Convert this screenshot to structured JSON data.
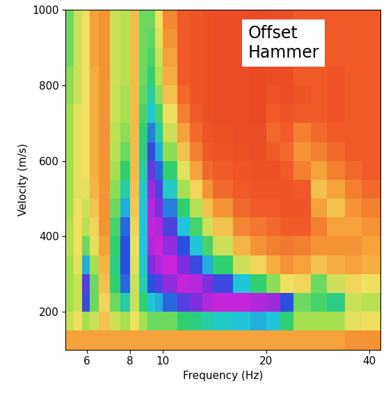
{
  "chart_data": {
    "type": "heatmap",
    "x_label": "Frequency (Hz)",
    "y_label": "Velocity (m/s)",
    "annotation": "Offset\nHammer",
    "log": "x",
    "xlim": [
      5.2,
      43
    ],
    "ylim": [
      100,
      1000
    ],
    "xticks": [
      6,
      8,
      10,
      20,
      40
    ],
    "yticks": [
      200,
      400,
      600,
      800,
      1000
    ],
    "x_edges": [
      5.2,
      5.5,
      5.8,
      6.1,
      6.5,
      7.0,
      7.5,
      8.0,
      8.5,
      9.0,
      9.5,
      10,
      11,
      12,
      13,
      14,
      16,
      18,
      20,
      22,
      24,
      27,
      30,
      34,
      38,
      43
    ],
    "y_edges": [
      100,
      150,
      200,
      250,
      300,
      350,
      400,
      450,
      500,
      550,
      600,
      650,
      700,
      750,
      800,
      850,
      900,
      950,
      1000
    ],
    "cell_range": [
      0,
      1
    ],
    "cells_by_frequency": [
      [
        0.3,
        0.45,
        0.5,
        0.5,
        0.5,
        0.48,
        0.48,
        0.5,
        0.5,
        0.5,
        0.5,
        0.5,
        0.5,
        0.52,
        0.52,
        0.55,
        0.55,
        0.55
      ],
      [
        0.3,
        0.4,
        0.45,
        0.45,
        0.42,
        0.4,
        0.4,
        0.4,
        0.42,
        0.42,
        0.42,
        0.42,
        0.42,
        0.45,
        0.45,
        0.45,
        0.45,
        0.45
      ],
      [
        0.3,
        0.5,
        0.82,
        0.85,
        0.72,
        0.55,
        0.48,
        0.45,
        0.42,
        0.4,
        0.4,
        0.4,
        0.4,
        0.4,
        0.4,
        0.4,
        0.4,
        0.4
      ],
      [
        0.3,
        0.45,
        0.55,
        0.55,
        0.5,
        0.42,
        0.38,
        0.35,
        0.33,
        0.32,
        0.32,
        0.32,
        0.32,
        0.32,
        0.32,
        0.3,
        0.3,
        0.3
      ],
      [
        0.3,
        0.35,
        0.38,
        0.35,
        0.33,
        0.3,
        0.28,
        0.28,
        0.28,
        0.28,
        0.28,
        0.28,
        0.28,
        0.28,
        0.28,
        0.28,
        0.28,
        0.28
      ],
      [
        0.3,
        0.45,
        0.55,
        0.6,
        0.62,
        0.6,
        0.58,
        0.55,
        0.52,
        0.5,
        0.48,
        0.47,
        0.46,
        0.46,
        0.45,
        0.45,
        0.45,
        0.45
      ],
      [
        0.3,
        0.5,
        0.65,
        0.78,
        0.8,
        0.8,
        0.78,
        0.72,
        0.65,
        0.6,
        0.55,
        0.52,
        0.5,
        0.5,
        0.48,
        0.48,
        0.48,
        0.48
      ],
      [
        0.3,
        0.4,
        0.45,
        0.45,
        0.42,
        0.4,
        0.38,
        0.36,
        0.35,
        0.34,
        0.34,
        0.34,
        0.34,
        0.34,
        0.34,
        0.34,
        0.34,
        0.34
      ],
      [
        0.3,
        0.5,
        0.6,
        0.65,
        0.68,
        0.7,
        0.7,
        0.7,
        0.68,
        0.65,
        0.62,
        0.6,
        0.58,
        0.56,
        0.55,
        0.55,
        0.55,
        0.55
      ],
      [
        0.3,
        0.55,
        0.7,
        0.8,
        0.9,
        0.95,
        0.97,
        0.96,
        0.93,
        0.88,
        0.82,
        0.76,
        0.7,
        0.65,
        0.6,
        0.58,
        0.56,
        0.55
      ],
      [
        0.3,
        0.55,
        0.72,
        0.85,
        0.95,
        0.98,
        0.95,
        0.9,
        0.84,
        0.78,
        0.72,
        0.65,
        0.58,
        0.52,
        0.48,
        0.45,
        0.42,
        0.4
      ],
      [
        0.3,
        0.55,
        0.78,
        0.92,
        0.98,
        0.92,
        0.84,
        0.76,
        0.68,
        0.6,
        0.52,
        0.45,
        0.4,
        0.35,
        0.32,
        0.3,
        0.28,
        0.26
      ],
      [
        0.3,
        0.6,
        0.85,
        0.97,
        0.9,
        0.8,
        0.7,
        0.6,
        0.5,
        0.42,
        0.35,
        0.3,
        0.25,
        0.22,
        0.2,
        0.2,
        0.2,
        0.2
      ],
      [
        0.3,
        0.62,
        0.9,
        0.96,
        0.82,
        0.7,
        0.58,
        0.48,
        0.38,
        0.3,
        0.25,
        0.22,
        0.2,
        0.18,
        0.18,
        0.18,
        0.18,
        0.18
      ],
      [
        0.3,
        0.65,
        0.95,
        0.9,
        0.72,
        0.58,
        0.45,
        0.35,
        0.28,
        0.22,
        0.2,
        0.18,
        0.17,
        0.17,
        0.17,
        0.17,
        0.17,
        0.17
      ],
      [
        0.3,
        0.68,
        0.97,
        0.82,
        0.6,
        0.45,
        0.35,
        0.28,
        0.22,
        0.2,
        0.18,
        0.17,
        0.16,
        0.16,
        0.16,
        0.16,
        0.16,
        0.16
      ],
      [
        0.3,
        0.7,
        0.97,
        0.7,
        0.45,
        0.33,
        0.26,
        0.22,
        0.2,
        0.18,
        0.17,
        0.16,
        0.16,
        0.16,
        0.16,
        0.16,
        0.16,
        0.16
      ],
      [
        0.3,
        0.72,
        0.95,
        0.6,
        0.38,
        0.28,
        0.24,
        0.2,
        0.18,
        0.17,
        0.16,
        0.16,
        0.15,
        0.15,
        0.15,
        0.15,
        0.15,
        0.15
      ],
      [
        0.3,
        0.7,
        0.93,
        0.52,
        0.32,
        0.25,
        0.22,
        0.2,
        0.18,
        0.17,
        0.2,
        0.22,
        0.2,
        0.18,
        0.16,
        0.16,
        0.16,
        0.16
      ],
      [
        0.3,
        0.6,
        0.8,
        0.4,
        0.28,
        0.24,
        0.2,
        0.18,
        0.18,
        0.2,
        0.22,
        0.2,
        0.18,
        0.16,
        0.16,
        0.16,
        0.16,
        0.16
      ],
      [
        0.3,
        0.5,
        0.55,
        0.38,
        0.3,
        0.25,
        0.2,
        0.18,
        0.2,
        0.25,
        0.28,
        0.25,
        0.2,
        0.18,
        0.2,
        0.22,
        0.22,
        0.2
      ],
      [
        0.3,
        0.5,
        0.58,
        0.55,
        0.35,
        0.28,
        0.25,
        0.3,
        0.35,
        0.3,
        0.25,
        0.22,
        0.2,
        0.2,
        0.2,
        0.2,
        0.2,
        0.2
      ],
      [
        0.3,
        0.5,
        0.62,
        0.45,
        0.32,
        0.28,
        0.3,
        0.35,
        0.3,
        0.25,
        0.22,
        0.2,
        0.18,
        0.18,
        0.18,
        0.2,
        0.2,
        0.2
      ],
      [
        0.28,
        0.42,
        0.45,
        0.38,
        0.3,
        0.28,
        0.3,
        0.28,
        0.25,
        0.22,
        0.2,
        0.2,
        0.2,
        0.2,
        0.2,
        0.2,
        0.2,
        0.2
      ],
      [
        0.28,
        0.4,
        0.48,
        0.4,
        0.32,
        0.3,
        0.28,
        0.25,
        0.22,
        0.2,
        0.2,
        0.2,
        0.2,
        0.2,
        0.2,
        0.2,
        0.2,
        0.2
      ]
    ]
  }
}
